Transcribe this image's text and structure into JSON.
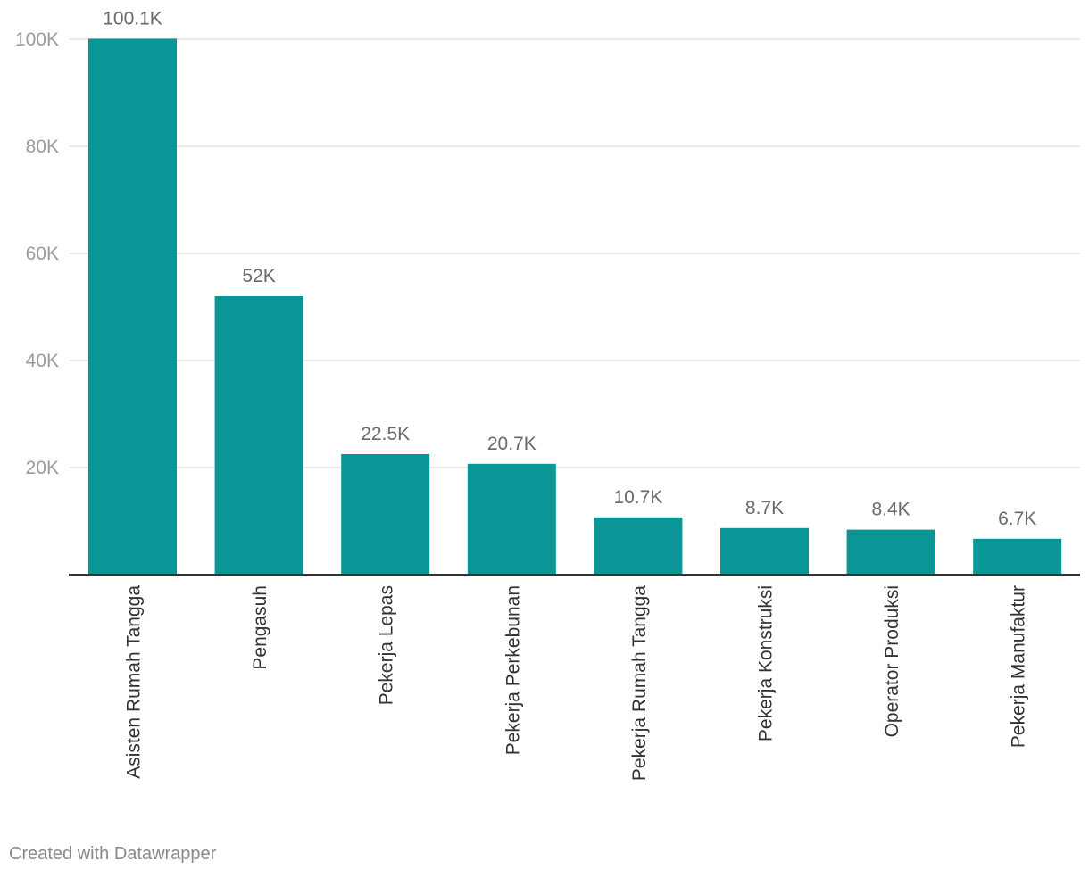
{
  "chart_data": {
    "type": "bar",
    "categories": [
      "Asisten Rumah Tangga",
      "Pengasuh",
      "Pekerja Lepas",
      "Pekerja Perkebunan",
      "Pekerja Rumah Tangga",
      "Pekerja Konstruksi",
      "Operator Produksi",
      "Pekerja Manufaktur"
    ],
    "values": [
      100100,
      52000,
      22500,
      20700,
      10700,
      8700,
      8400,
      6700
    ],
    "data_labels": [
      "100.1K",
      "52K",
      "22.5K",
      "20.7K",
      "10.7K",
      "8.7K",
      "8.4K",
      "6.7K"
    ],
    "title": "",
    "xlabel": "",
    "ylabel": "",
    "ylim": [
      0,
      100000
    ],
    "yticks": [
      0,
      20000,
      40000,
      60000,
      80000,
      100000
    ],
    "ytick_labels": [
      "",
      "20K",
      "40K",
      "60K",
      "80K",
      "100K"
    ],
    "grid": true,
    "bar_color": "#0a9696"
  },
  "footer": {
    "credit": "Created with Datawrapper"
  }
}
